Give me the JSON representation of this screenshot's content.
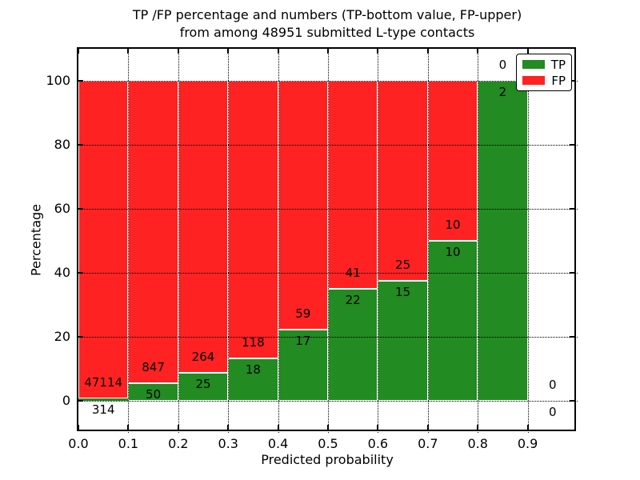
{
  "figure": {
    "title_line1": "TP /FP percentage and numbers (TP-bottom value, FP-upper)",
    "title_line2": "from among 48951 submitted L-type contacts"
  },
  "chart_data": {
    "type": "bar",
    "stacked": true,
    "title": "TP /FP percentage and numbers (TP-bottom value, FP-upper)\nfrom among 48951 submitted L-type contacts",
    "xlabel": "Predicted probability",
    "ylabel": "Percentage",
    "total_submitted": 48951,
    "xlim": [
      0.0,
      1.0
    ],
    "ylim": [
      -10,
      110
    ],
    "grid": true,
    "bar_width": 0.1,
    "colors": {
      "tp": "#228B22",
      "fp": "#FF2222",
      "bar_edge": "#FFFFFF"
    },
    "yticks": [
      0,
      20,
      40,
      60,
      80,
      100
    ],
    "xticks": [
      "0.0",
      "0.1",
      "0.2",
      "0.3",
      "0.4",
      "0.5",
      "0.6",
      "0.7",
      "0.8",
      "0.9"
    ],
    "legend": {
      "position": "upper right",
      "entries": [
        {
          "label": "TP",
          "color": "#228B22"
        },
        {
          "label": "FP",
          "color": "#FF2222"
        }
      ]
    },
    "bins": [
      {
        "range": [
          0.0,
          0.1
        ],
        "tp_count": 314,
        "fp_count": 47114,
        "tp_pct": 0.66,
        "fp_pct": 99.34
      },
      {
        "range": [
          0.1,
          0.2
        ],
        "tp_count": 50,
        "fp_count": 847,
        "tp_pct": 5.57,
        "fp_pct": 94.43
      },
      {
        "range": [
          0.2,
          0.3
        ],
        "tp_count": 25,
        "fp_count": 264,
        "tp_pct": 8.65,
        "fp_pct": 91.35
      },
      {
        "range": [
          0.3,
          0.4
        ],
        "tp_count": 18,
        "fp_count": 118,
        "tp_pct": 13.24,
        "fp_pct": 86.76
      },
      {
        "range": [
          0.4,
          0.5
        ],
        "tp_count": 17,
        "fp_count": 59,
        "tp_pct": 22.37,
        "fp_pct": 77.63
      },
      {
        "range": [
          0.5,
          0.6
        ],
        "tp_count": 22,
        "fp_count": 41,
        "tp_pct": 34.92,
        "fp_pct": 65.08
      },
      {
        "range": [
          0.6,
          0.7
        ],
        "tp_count": 15,
        "fp_count": 25,
        "tp_pct": 37.5,
        "fp_pct": 62.5
      },
      {
        "range": [
          0.7,
          0.8
        ],
        "tp_count": 10,
        "fp_count": 10,
        "tp_pct": 50.0,
        "fp_pct": 50.0
      },
      {
        "range": [
          0.8,
          0.9
        ],
        "tp_count": 2,
        "fp_count": 0,
        "tp_pct": 100.0,
        "fp_pct": 0.0
      },
      {
        "range": [
          0.9,
          1.0
        ],
        "tp_count": 0,
        "fp_count": 0,
        "tp_pct": 0.0,
        "fp_pct": 0.0
      }
    ]
  }
}
